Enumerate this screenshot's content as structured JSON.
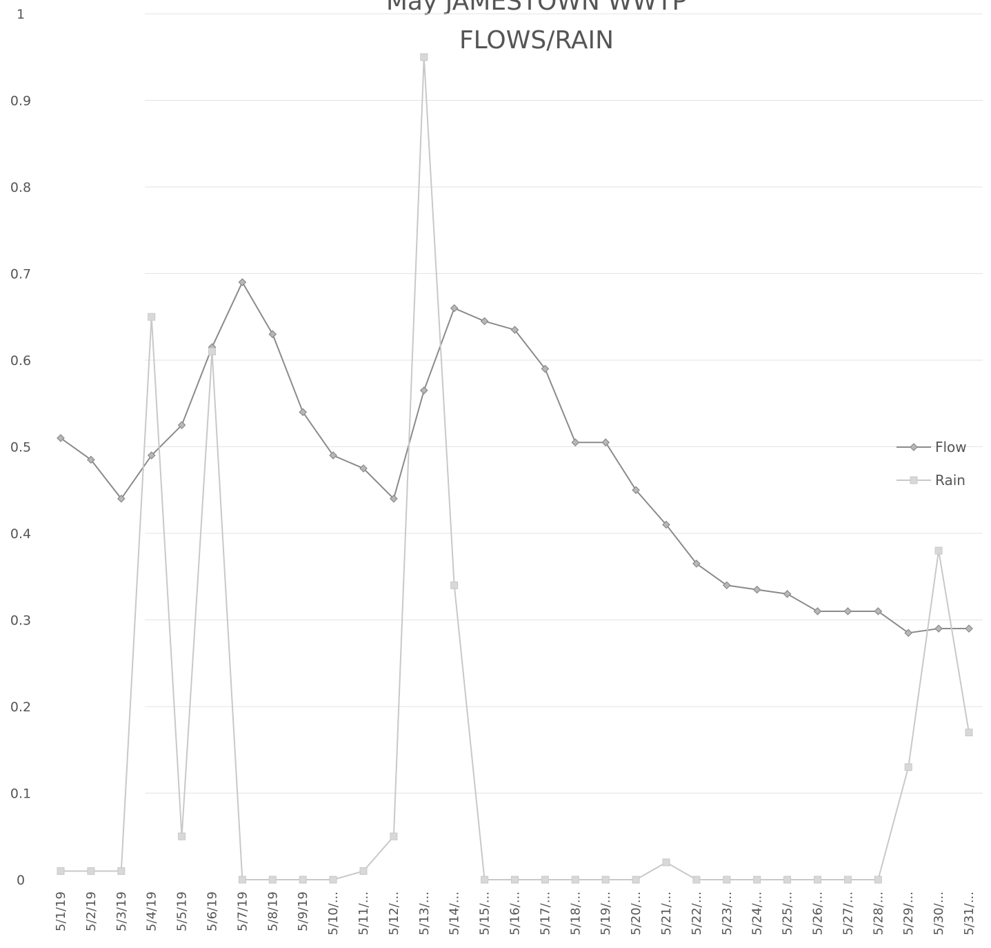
{
  "chart_data": {
    "type": "line",
    "title": "May JAMESTOWN WWTP FLOWS/RAIN",
    "title_lines": [
      "May JAMESTOWN WWTP",
      "FLOWS/RAIN"
    ],
    "xlabel": "",
    "ylabel": "",
    "ylim": [
      0,
      1
    ],
    "yticks": [
      "0",
      "0.1",
      "0.2",
      "0.3",
      "0.4",
      "0.5",
      "0.6",
      "0.7",
      "0.8",
      "0.9",
      "1"
    ],
    "grid": true,
    "legend_position": "right",
    "categories": [
      "5/1/19",
      "5/2/19",
      "5/3/19",
      "5/4/19",
      "5/5/19",
      "5/6/19",
      "5/7/19",
      "5/8/19",
      "5/9/19",
      "5/10/...",
      "5/11/...",
      "5/12/...",
      "5/13/...",
      "5/14/...",
      "5/15/...",
      "5/16/...",
      "5/17/...",
      "5/18/...",
      "5/19/...",
      "5/20/...",
      "5/21/...",
      "5/22/...",
      "5/23/...",
      "5/24/...",
      "5/25/...",
      "5/26/...",
      "5/27/...",
      "5/28/...",
      "5/29/...",
      "5/30/...",
      "5/31/..."
    ],
    "series": [
      {
        "name": "Flow",
        "color": "#8a8a8a",
        "marker": "diamond",
        "values": [
          0.51,
          0.485,
          0.44,
          0.49,
          0.525,
          0.615,
          0.69,
          0.63,
          0.54,
          0.49,
          0.475,
          0.44,
          0.565,
          0.66,
          0.645,
          0.635,
          0.59,
          0.505,
          0.505,
          0.45,
          0.41,
          0.365,
          0.34,
          0.335,
          0.33,
          0.31,
          0.31,
          0.31,
          0.285,
          0.29,
          0.29
        ]
      },
      {
        "name": "Rain",
        "color": "#c8c8c8",
        "marker": "square",
        "values": [
          0.01,
          0.01,
          0.01,
          0.65,
          0.05,
          0.61,
          0.0,
          0.0,
          0.0,
          0.0,
          0.01,
          0.05,
          0.95,
          0.34,
          0.0,
          0.0,
          0.0,
          0.0,
          0.0,
          0.0,
          0.02,
          0.0,
          0.0,
          0.0,
          0.0,
          0.0,
          0.0,
          0.0,
          0.13,
          0.38,
          0.17
        ]
      }
    ]
  }
}
